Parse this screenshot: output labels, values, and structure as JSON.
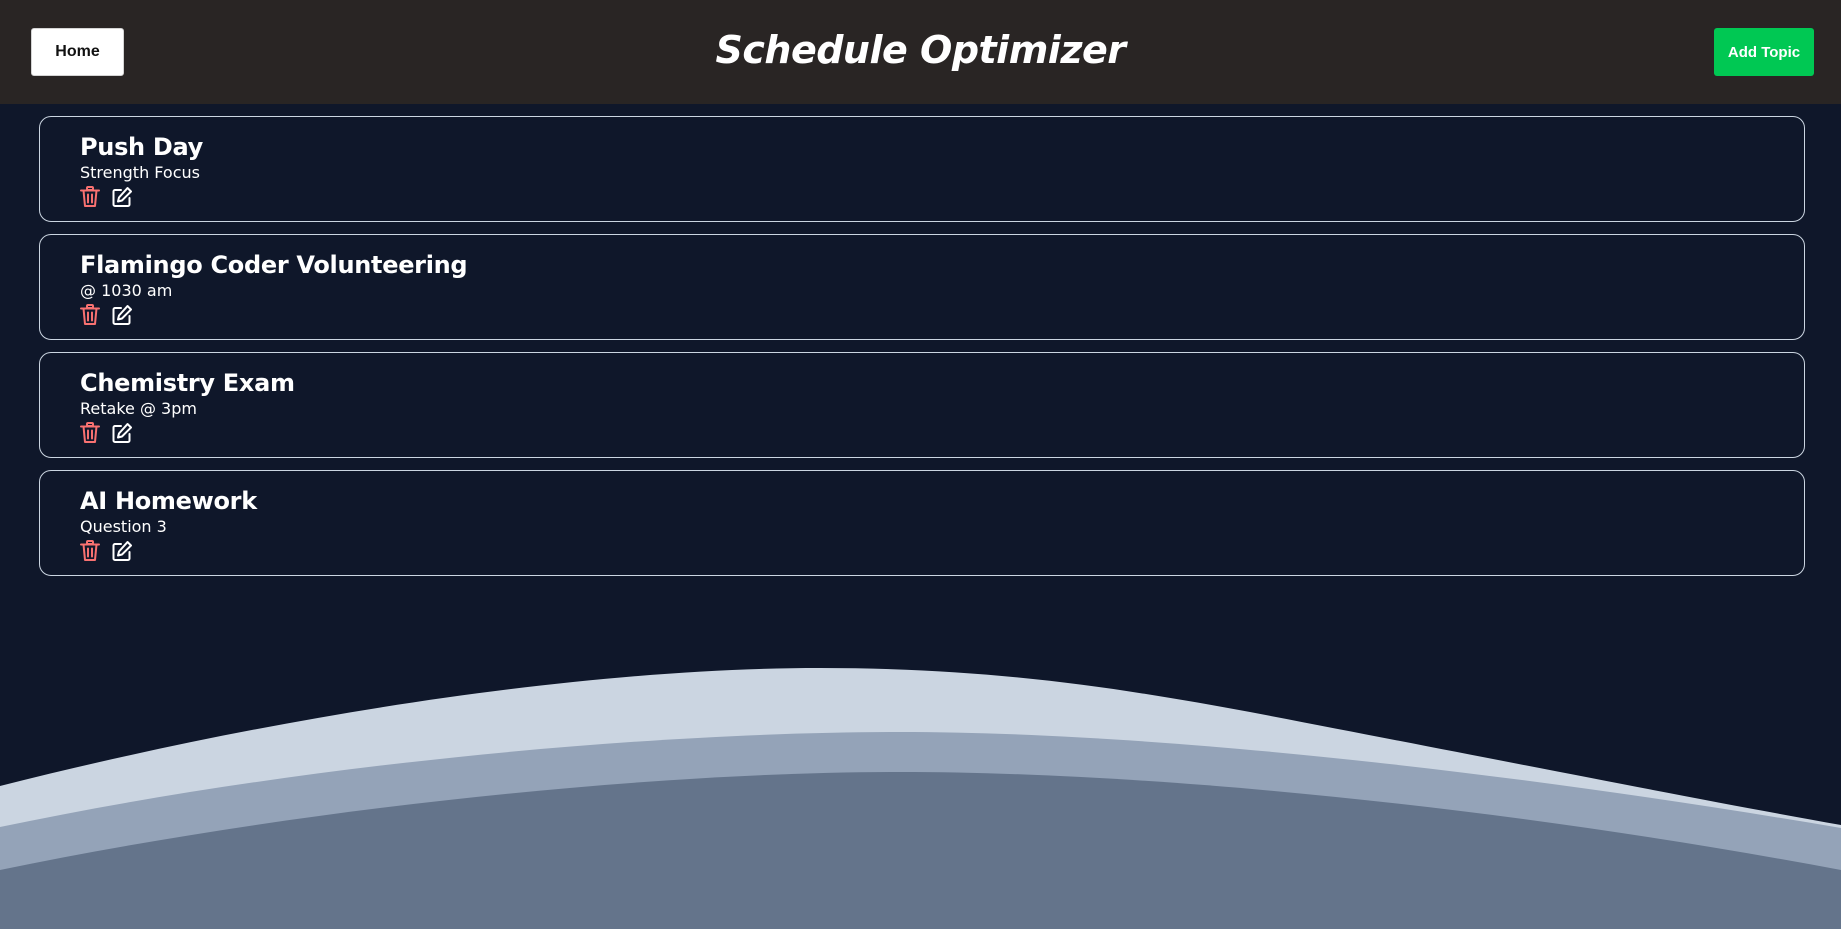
{
  "header": {
    "title": "Schedule Optimizer",
    "home_label": "Home",
    "add_label": "Add Topic"
  },
  "topics": [
    {
      "title": "Push Day",
      "subtitle": "Strength Focus"
    },
    {
      "title": "Flamingo Coder Volunteering",
      "subtitle": "@ 1030 am"
    },
    {
      "title": "Chemistry Exam",
      "subtitle": "Retake @ 3pm"
    },
    {
      "title": "AI Homework",
      "subtitle": "Question 3"
    }
  ],
  "icons": {
    "delete": "trash-icon",
    "edit": "edit-icon"
  },
  "colors": {
    "background": "#0f172a",
    "header": "#292524",
    "add_button": "#00c853",
    "delete_icon": "#f87171",
    "wave_light": "#cbd5e1",
    "wave_mid": "#94a3b8",
    "wave_dark": "#64748b"
  }
}
